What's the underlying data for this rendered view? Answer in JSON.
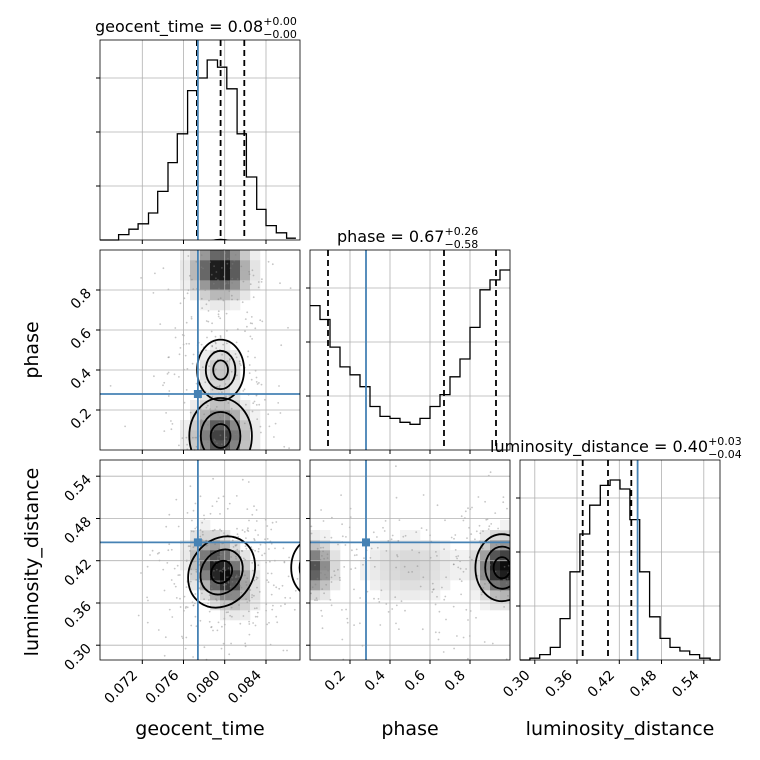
{
  "chart_data": {
    "type": "corner",
    "parameters": [
      "geocent_time",
      "phase",
      "luminosity_distance"
    ],
    "axis_labels": [
      "geocent_time",
      "phase",
      "luminosity_distance"
    ],
    "titles": [
      {
        "param": "geocent_time",
        "text": "geocent_time = 0.08",
        "sup": "+0.00",
        "sub": "−0.00"
      },
      {
        "param": "phase",
        "text": "phase = 0.67",
        "sup": "+0.26",
        "sub": "−0.58"
      },
      {
        "param": "luminosity_distance",
        "text": "luminosity_distance = 0.40",
        "sup": "+0.03",
        "sub": "−0.04"
      }
    ],
    "ranges": {
      "geocent_time": [
        0.0679,
        0.0873
      ],
      "phase": [
        0.0,
        1.0
      ],
      "luminosity_distance": [
        0.279,
        0.563
      ]
    },
    "ticks": {
      "geocent_time": {
        "values": [
          0.072,
          0.076,
          0.08,
          0.084
        ],
        "labels": [
          "0.072",
          "0.076",
          "0.080",
          "0.084"
        ]
      },
      "phase": {
        "values": [
          0.2,
          0.4,
          0.6,
          0.8
        ],
        "labels": [
          "0.2",
          "0.4",
          "0.6",
          "0.8"
        ]
      },
      "luminosity_distance": {
        "values": [
          0.3,
          0.36,
          0.42,
          0.48,
          0.54
        ],
        "labels": [
          "0.30",
          "0.36",
          "0.42",
          "0.48",
          "0.54"
        ]
      }
    },
    "truths": {
      "geocent_time": 0.0774,
      "phase": 0.28,
      "luminosity_distance": 0.446
    },
    "quantiles": {
      "geocent_time": [
        0.0773,
        0.0796,
        0.0819
      ],
      "phase": [
        0.09,
        0.67,
        0.93
      ],
      "luminosity_distance": [
        0.368,
        0.404,
        0.437
      ]
    },
    "histograms": {
      "geocent_time": {
        "bins": [
          0.0678,
          0.0697,
          0.0707,
          0.0716,
          0.0726,
          0.0735,
          0.0745,
          0.0754,
          0.0764,
          0.0774,
          0.0783,
          0.0793,
          0.0802,
          0.0812,
          0.0821,
          0.0831,
          0.084,
          0.085,
          0.086,
          0.0869
        ],
        "counts": [
          0,
          0.03,
          0.06,
          0.09,
          0.15,
          0.27,
          0.43,
          0.59,
          0.83,
          0.9,
          1.0,
          0.96,
          0.84,
          0.59,
          0.35,
          0.17,
          0.08,
          0.04,
          0.01
        ]
      },
      "phase": {
        "bins": [
          0.0,
          0.05,
          0.1,
          0.15,
          0.2,
          0.25,
          0.3,
          0.35,
          0.4,
          0.45,
          0.5,
          0.55,
          0.6,
          0.65,
          0.7,
          0.75,
          0.8,
          0.85,
          0.9,
          0.95,
          1.0
        ],
        "counts": [
          0.73,
          0.66,
          0.52,
          0.42,
          0.38,
          0.32,
          0.22,
          0.17,
          0.16,
          0.14,
          0.13,
          0.16,
          0.22,
          0.28,
          0.37,
          0.46,
          0.62,
          0.81,
          0.86,
          0.91
        ]
      },
      "luminosity_distance": {
        "bins": [
          0.279,
          0.293,
          0.307,
          0.322,
          0.336,
          0.35,
          0.364,
          0.378,
          0.393,
          0.407,
          0.421,
          0.435,
          0.449,
          0.463,
          0.478,
          0.492,
          0.506,
          0.52,
          0.534,
          0.549,
          0.563
        ],
        "counts": [
          0,
          0.01,
          0.03,
          0.07,
          0.23,
          0.49,
          0.7,
          0.86,
          0.97,
          1.0,
          0.95,
          0.78,
          0.49,
          0.24,
          0.12,
          0.07,
          0.05,
          0.03,
          0.01,
          0.0
        ]
      }
    },
    "grid": true,
    "scatter_color": "#808080",
    "truth_color": "#4682b4"
  }
}
